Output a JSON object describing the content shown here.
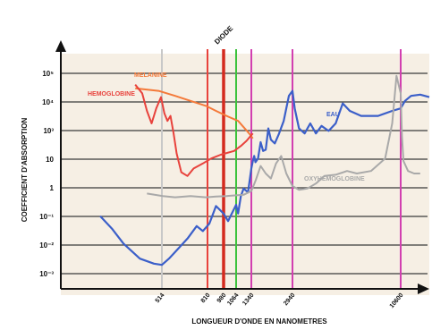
{
  "chart_data": {
    "type": "line",
    "title": "DIODE",
    "xlabel": "LONGUEUR D'ONDE EN NANOMETRES",
    "ylabel": "COEFFICIENT D'ABSORPTION",
    "y_ticks": [
      "10⁵",
      "10⁴",
      "10³",
      "10",
      "1",
      "10⁻¹",
      "10⁻²",
      "10⁻³"
    ],
    "x_ticks": [
      "514",
      "810",
      "980",
      "1064",
      "1340",
      "2940",
      "10600"
    ],
    "series": [
      {
        "name": "MELANINE",
        "color": "#f47a3a",
        "points": [
          [
            400,
            4.4
          ],
          [
            500,
            4.3
          ],
          [
            600,
            4.1
          ],
          [
            700,
            3.9
          ],
          [
            800,
            3.7
          ],
          [
            900,
            3.5
          ],
          [
            1000,
            3.3
          ],
          [
            1100,
            3.1
          ],
          [
            1200,
            2.85
          ],
          [
            1300,
            2.6
          ],
          [
            1400,
            2.4
          ]
        ]
      },
      {
        "name": "HEMOGLOBINE",
        "color": "#e8423c",
        "points": [
          [
            400,
            4.55
          ],
          [
            430,
            4.2
          ],
          [
            450,
            3.5
          ],
          [
            470,
            3.0
          ],
          [
            490,
            3.6
          ],
          [
            510,
            4.05
          ],
          [
            530,
            3.4
          ],
          [
            550,
            3.1
          ],
          [
            570,
            3.3
          ],
          [
            590,
            2.6
          ],
          [
            610,
            1.8
          ],
          [
            640,
            1.05
          ],
          [
            680,
            0.9
          ],
          [
            720,
            1.2
          ],
          [
            780,
            1.4
          ],
          [
            850,
            1.6
          ],
          [
            950,
            1.75
          ],
          [
            1050,
            1.9
          ],
          [
            1150,
            2.1
          ],
          [
            1250,
            2.3
          ],
          [
            1400,
            2.6
          ]
        ]
      },
      {
        "name": "EAU",
        "color": "#3b5fc9",
        "points": [
          [
            250,
            -0.7
          ],
          [
            300,
            -1.2
          ],
          [
            350,
            -1.8
          ],
          [
            420,
            -2.4
          ],
          [
            480,
            -2.6
          ],
          [
            514,
            -2.65
          ],
          [
            560,
            -2.4
          ],
          [
            620,
            -2.0
          ],
          [
            680,
            -1.6
          ],
          [
            740,
            -1.1
          ],
          [
            780,
            -1.3
          ],
          [
            830,
            -1.0
          ],
          [
            900,
            -0.3
          ],
          [
            980,
            -0.6
          ],
          [
            1010,
            -0.9
          ],
          [
            1064,
            -0.25
          ],
          [
            1100,
            -0.6
          ],
          [
            1150,
            0.1
          ],
          [
            1200,
            0.4
          ],
          [
            1280,
            0.25
          ],
          [
            1340,
            1.2
          ],
          [
            1400,
            1.5
          ],
          [
            1450,
            1.7
          ],
          [
            1500,
            1.45
          ],
          [
            1600,
            1.6
          ],
          [
            1700,
            2.25
          ],
          [
            1800,
            1.9
          ],
          [
            1900,
            1.95
          ],
          [
            2000,
            2.8
          ],
          [
            2100,
            2.35
          ],
          [
            2250,
            2.2
          ],
          [
            2400,
            2.55
          ],
          [
            2600,
            3.1
          ],
          [
            2800,
            4.1
          ],
          [
            2940,
            4.3
          ],
          [
            3100,
            3.6
          ],
          [
            3400,
            2.8
          ],
          [
            3800,
            2.6
          ],
          [
            4200,
            3.0
          ],
          [
            4600,
            2.6
          ],
          [
            5000,
            2.9
          ],
          [
            5500,
            2.7
          ],
          [
            6000,
            3.0
          ],
          [
            6500,
            3.8
          ],
          [
            7000,
            3.5
          ],
          [
            7800,
            3.3
          ],
          [
            9000,
            3.3
          ],
          [
            10000,
            3.5
          ],
          [
            10600,
            3.6
          ],
          [
            12000,
            3.9
          ],
          [
            14000,
            4.1
          ],
          [
            17000,
            4.15
          ],
          [
            20000,
            4.05
          ]
        ]
      },
      {
        "name": "OXYHEMOGLOBINE",
        "color": "#a9a9a9",
        "points": [
          [
            450,
            0.2
          ],
          [
            520,
            0.1
          ],
          [
            600,
            0.05
          ],
          [
            700,
            0.1
          ],
          [
            800,
            0.05
          ],
          [
            900,
            0.08
          ],
          [
            1000,
            0.1
          ],
          [
            1200,
            0.15
          ],
          [
            1340,
            0.3
          ],
          [
            1500,
            0.7
          ],
          [
            1700,
            1.3
          ],
          [
            1900,
            1.0
          ],
          [
            2100,
            0.8
          ],
          [
            2300,
            1.4
          ],
          [
            2500,
            1.7
          ],
          [
            2700,
            1.0
          ],
          [
            2940,
            0.5
          ],
          [
            3400,
            0.35
          ],
          [
            4000,
            0.4
          ],
          [
            4600,
            0.6
          ],
          [
            5200,
            0.9
          ],
          [
            6000,
            0.95
          ],
          [
            6800,
            1.1
          ],
          [
            7500,
            1.0
          ],
          [
            8500,
            1.1
          ],
          [
            9500,
            1.6
          ],
          [
            10000,
            3.0
          ],
          [
            10300,
            4.9
          ],
          [
            10600,
            4.2
          ],
          [
            11000,
            2.5
          ],
          [
            11500,
            1.5
          ],
          [
            13000,
            1.1
          ],
          [
            15000,
            1.0
          ],
          [
            17000,
            1.0
          ]
        ]
      }
    ],
    "wavelength_markers": [
      {
        "x": 514,
        "label": "514",
        "color": "#c8c8c8"
      },
      {
        "x": 810,
        "label": "810",
        "color": "#e8423c"
      },
      {
        "x": 980,
        "label": "980",
        "color": "#d42a1e"
      },
      {
        "x": 1064,
        "label": "1064",
        "color": "#3cc23c"
      },
      {
        "x": 1340,
        "label": "1340",
        "color": "#d23fb0"
      },
      {
        "x": 2940,
        "label": "2940",
        "color": "#d23fb0"
      },
      {
        "x": 10600,
        "label": "10600",
        "color": "#d23fb0"
      }
    ],
    "grid": true,
    "annotations": [
      {
        "text": "MELANINE",
        "series": "MELANINE"
      },
      {
        "text": "HEMOGLOBINE",
        "series": "HEMOGLOBINE"
      },
      {
        "text": "EAU",
        "series": "EAU"
      },
      {
        "text": "OXYHEMOGLOBINE",
        "series": "OXYHEMOGLOBINE"
      }
    ]
  }
}
